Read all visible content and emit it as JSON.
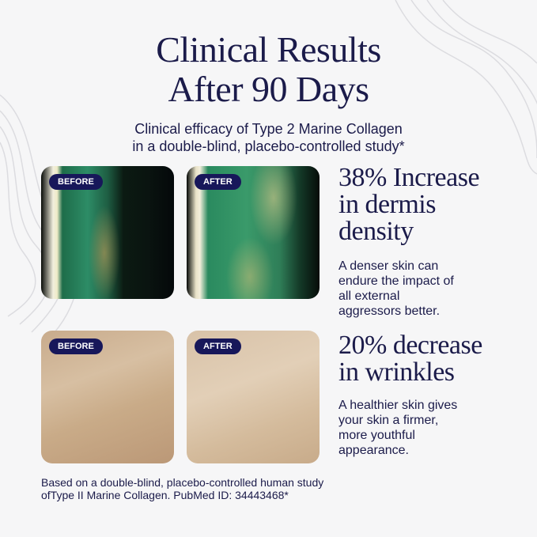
{
  "title_line1": "Clinical Results",
  "title_line2": "After 90 Days",
  "subtitle_line1": "Clinical efficacy of Type 2 Marine Collagen",
  "subtitle_line2": "in a double-blind, placebo-controlled study*",
  "labels": {
    "before": "BEFORE",
    "after": "AFTER"
  },
  "results": [
    {
      "headline": [
        "38% Increase",
        "in dermis",
        "density"
      ],
      "description": [
        "A denser skin can",
        "endure the impact of",
        "all external",
        "aggressors better."
      ]
    },
    {
      "headline": [
        "20% decrease",
        "in wrinkles"
      ],
      "description": [
        "A healthier skin gives",
        "your skin a firmer,",
        "more youthful",
        "appearance."
      ]
    }
  ],
  "footnote_line1": "Based on a double-blind, placebo-controlled human study",
  "footnote_line2": "ofType II Marine Collagen. PubMed ID: 34443468*",
  "colors": {
    "navy": "#1b1b4a",
    "badge": "#17175a",
    "background": "#f6f6f7"
  }
}
